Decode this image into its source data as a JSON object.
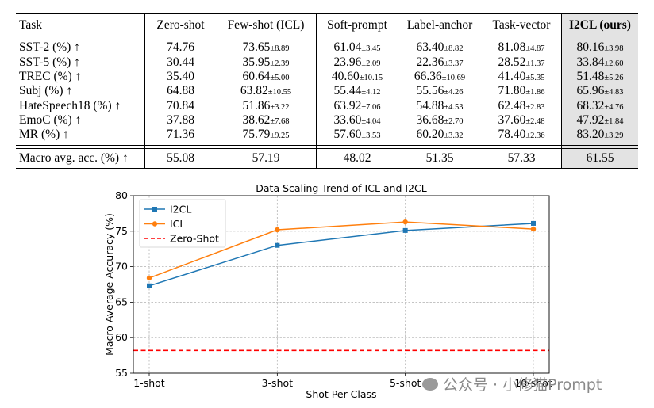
{
  "table": {
    "headers": {
      "task": "Task",
      "zero_shot": "Zero-shot",
      "few_shot": "Few-shot (ICL)",
      "soft_prompt": "Soft-prompt",
      "label_anchor": "Label-anchor",
      "task_vector": "Task-vector",
      "i2cl": "I2CL (ours)"
    },
    "rows": [
      {
        "task": "SST-2 (%) ↑",
        "zero": "74.76",
        "few": "73.65",
        "few_std": "8.89",
        "soft": "61.04",
        "soft_std": "3.45",
        "label": "63.40",
        "label_std": "8.82",
        "tv": "81.08",
        "tv_std": "4.87",
        "i2cl": "80.16",
        "i2cl_std": "3.98"
      },
      {
        "task": "SST-5 (%) ↑",
        "zero": "30.44",
        "few": "35.95",
        "few_std": "2.39",
        "soft": "23.96",
        "soft_std": "2.09",
        "label": "22.36",
        "label_std": "3.37",
        "tv": "28.52",
        "tv_std": "1.37",
        "i2cl": "33.84",
        "i2cl_std": "2.60"
      },
      {
        "task": "TREC (%) ↑",
        "zero": "35.40",
        "few": "60.64",
        "few_std": "5.00",
        "soft": "40.60",
        "soft_std": "10.15",
        "label": "66.36",
        "label_std": "10.69",
        "tv": "41.40",
        "tv_std": "5.35",
        "i2cl": "51.48",
        "i2cl_std": "5.26"
      },
      {
        "task": "Subj (%) ↑",
        "zero": "64.88",
        "few": "63.82",
        "few_std": "10.55",
        "soft": "55.44",
        "soft_std": "4.12",
        "label": "55.56",
        "label_std": "4.26",
        "tv": "71.80",
        "tv_std": "1.86",
        "i2cl": "65.96",
        "i2cl_std": "4.83"
      },
      {
        "task": "HateSpeech18 (%) ↑",
        "zero": "70.84",
        "few": "51.86",
        "few_std": "3.22",
        "soft": "63.92",
        "soft_std": "7.06",
        "label": "54.88",
        "label_std": "4.53",
        "tv": "62.48",
        "tv_std": "2.83",
        "i2cl": "68.32",
        "i2cl_std": "4.76"
      },
      {
        "task": "EmoC (%) ↑",
        "zero": "37.88",
        "few": "38.62",
        "few_std": "7.68",
        "soft": "33.60",
        "soft_std": "4.04",
        "label": "36.68",
        "label_std": "2.70",
        "tv": "37.60",
        "tv_std": "2.48",
        "i2cl": "47.92",
        "i2cl_std": "1.84"
      },
      {
        "task": "MR (%) ↑",
        "zero": "71.36",
        "few": "75.79",
        "few_std": "9.25",
        "soft": "57.60",
        "soft_std": "3.53",
        "label": "60.20",
        "label_std": "3.32",
        "tv": "78.40",
        "tv_std": "2.36",
        "i2cl": "83.20",
        "i2cl_std": "3.29"
      }
    ],
    "pm": "±",
    "average": {
      "task": "Macro avg. acc. (%) ↑",
      "zero": "55.08",
      "few": "57.19",
      "soft": "48.02",
      "label": "51.35",
      "tv": "57.33",
      "i2cl": "61.55"
    }
  },
  "chart_data": {
    "type": "line",
    "title": "Data Scaling Trend of ICL and I2CL",
    "xlabel": "Shot Per Class",
    "ylabel": "Macro Average Accuracy (%)",
    "categories": [
      "1-shot",
      "3-shot",
      "5-shot",
      "10-shot"
    ],
    "series": [
      {
        "name": "I2CL",
        "values": [
          67.3,
          73.0,
          75.1,
          76.1
        ],
        "color": "#1f77b4",
        "marker": "square"
      },
      {
        "name": "ICL",
        "values": [
          68.4,
          75.2,
          76.3,
          75.3
        ],
        "color": "#ff7f0e",
        "marker": "circle"
      }
    ],
    "reference_lines": [
      {
        "name": "Zero-Shot",
        "value": 58.2,
        "color": "#ff0000",
        "style": "dashed"
      }
    ],
    "ylim": [
      55,
      80
    ],
    "yticks": [
      55,
      60,
      65,
      70,
      75,
      80
    ],
    "grid": true,
    "legend_position": "top-left"
  },
  "watermark": {
    "text": "公众号 · 小修猫Prompt"
  }
}
